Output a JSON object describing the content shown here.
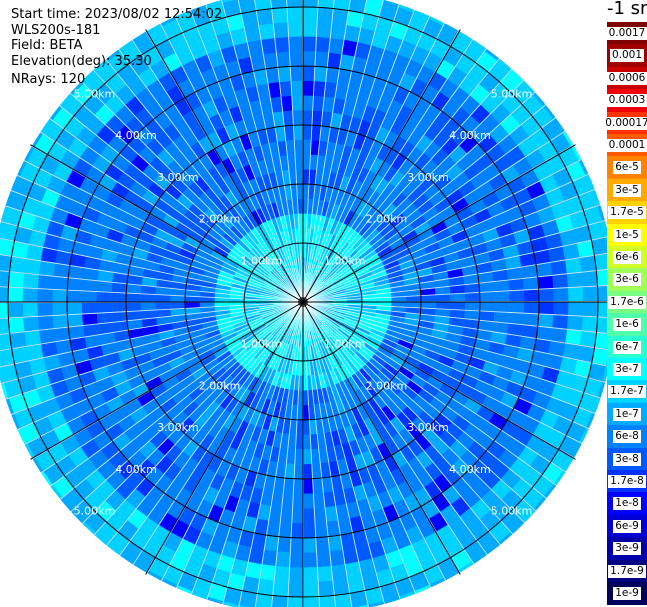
{
  "info": {
    "start_time": "Start time: 2023/08/02 12:54:02",
    "instrument": "WLS200s-181",
    "field": "Field: BETA",
    "elevation": "Elevation(deg): 35.30",
    "nrays": "NRays: 120"
  },
  "colorbar": {
    "unit_label": "-1 sr",
    "ticks": [
      "0.0017",
      "0.001",
      "0.0006",
      "0.0003",
      "0.00017",
      "0.0001",
      "6e-5",
      "3e-5",
      "1.7e-5",
      "1e-5",
      "6e-6",
      "3e-6",
      "1.7e-6",
      "1e-6",
      "6e-7",
      "3e-7",
      "1.7e-7",
      "1e-7",
      "6e-8",
      "3e-8",
      "1.7e-8",
      "1e-8",
      "6e-9",
      "3e-9",
      "1.7e-9",
      "1e-9"
    ],
    "colors": [
      "#800000",
      "#a00000",
      "#c80000",
      "#f00000",
      "#ff3200",
      "#ff5a00",
      "#ff8200",
      "#ffaa00",
      "#ffd200",
      "#ffff00",
      "#d2ff28",
      "#a0ff5a",
      "#78ff82",
      "#50ffaa",
      "#28ffd2",
      "#00ffff",
      "#00d2ff",
      "#00aaff",
      "#0082ff",
      "#005aff",
      "#0032ff",
      "#0000ff",
      "#0000d2",
      "#0000aa",
      "#000082",
      "#00005a"
    ]
  },
  "chart_data": {
    "type": "heatmap",
    "title": "",
    "projection": "polar PPI",
    "n_rays": 120,
    "range_rings_km": [
      1,
      2,
      3,
      4,
      5
    ],
    "ring_labels": [
      "1.00km",
      "2.00km",
      "3.00km",
      "4.00km",
      "5.00km"
    ],
    "max_range_km": 5.3,
    "azimuth_lines_deg": [
      0,
      30,
      60,
      90,
      120,
      150,
      180,
      210,
      240,
      270,
      300,
      330
    ],
    "field": "BETA",
    "value_range": [
      1e-09,
      0.0017
    ],
    "dominant_values": "mostly 3e-8 to 3e-7 (blue to cyan)"
  }
}
